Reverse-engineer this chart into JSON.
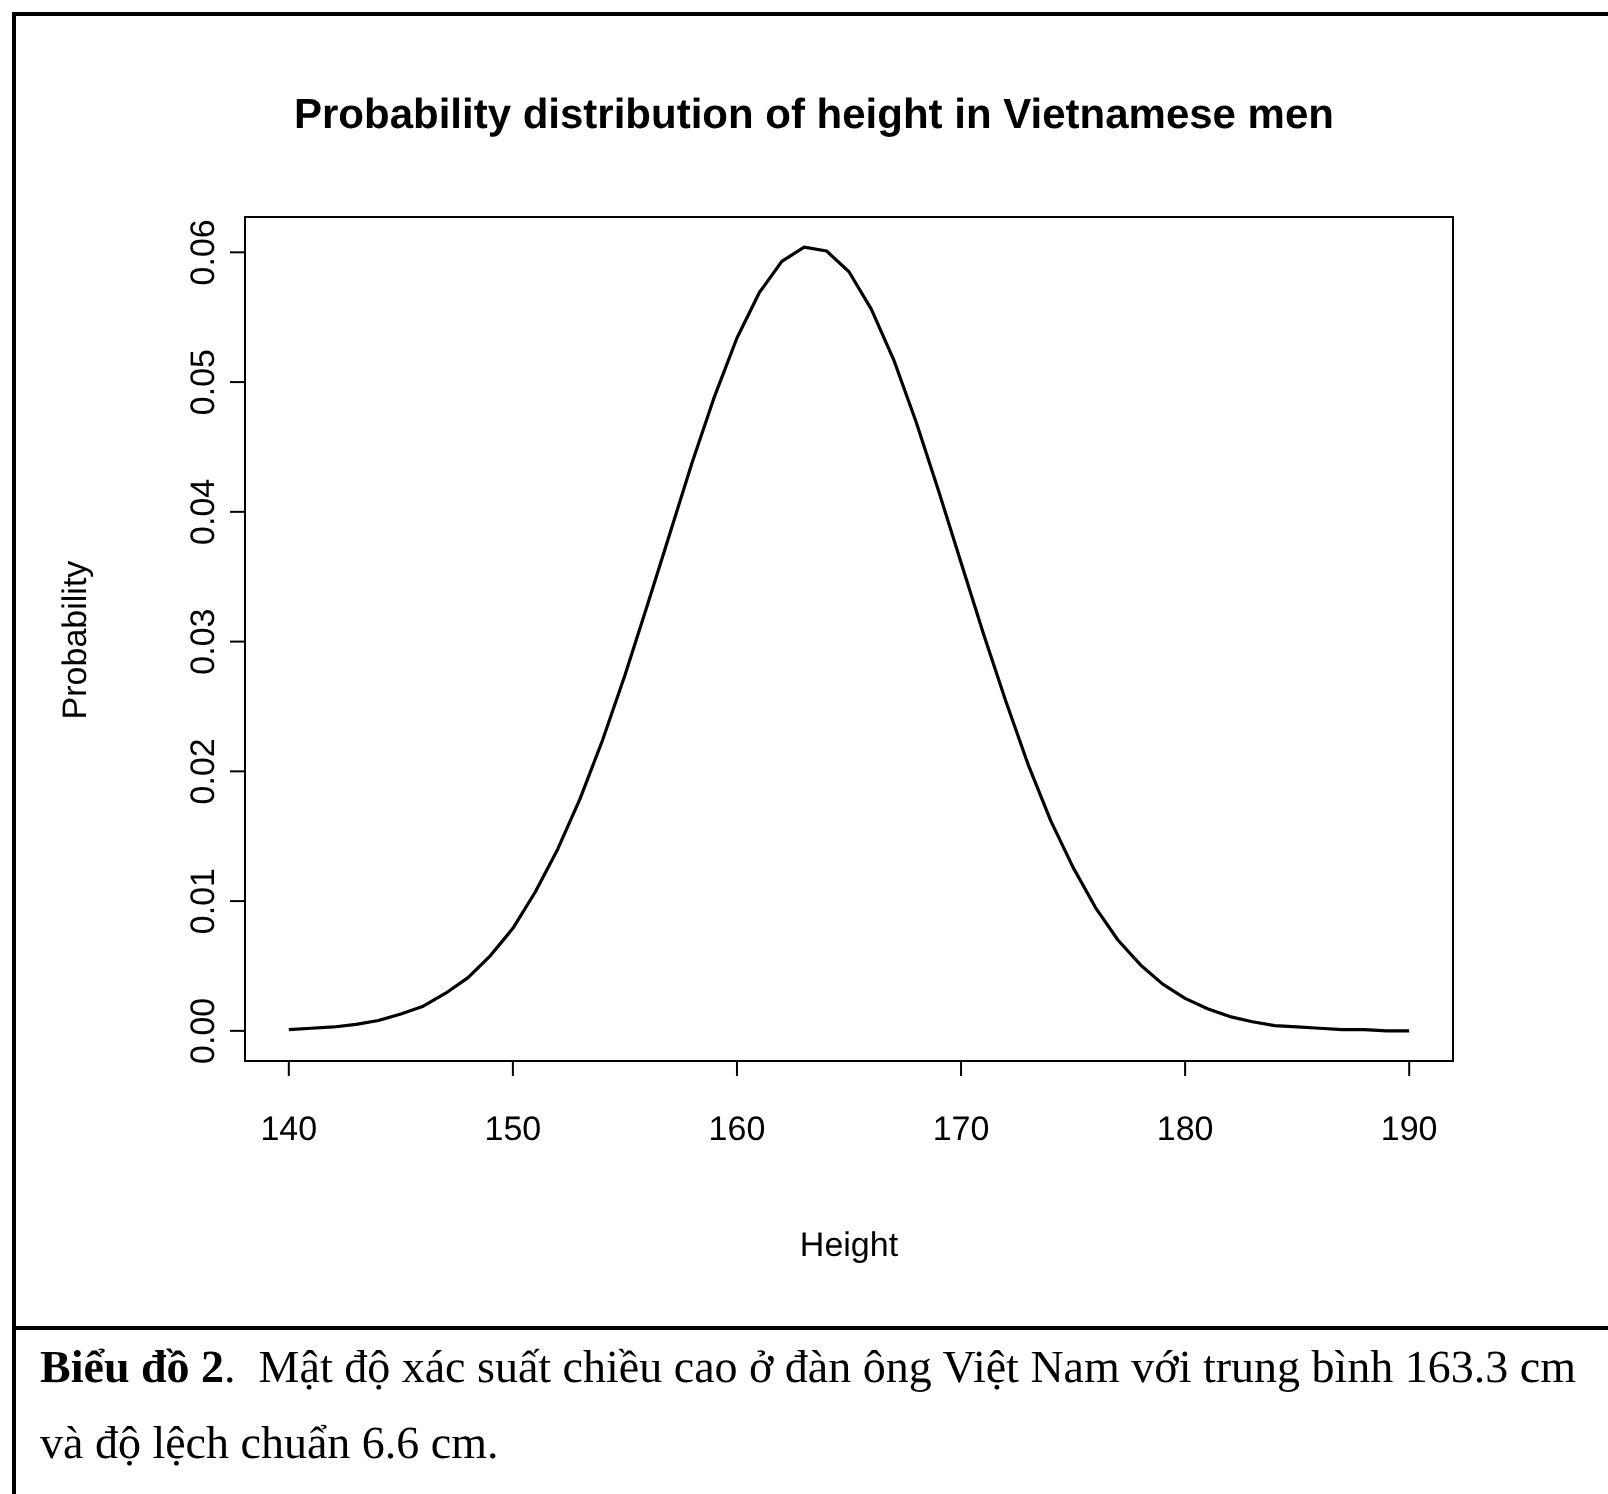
{
  "chart_data": {
    "type": "line",
    "title": "Probability distribution of height in Vietnamese men",
    "xlabel": "Height",
    "ylabel": "Probability",
    "annotations": [
      "Biểu đồ 2.  Mật độ xác suất chiều cao ở đàn ông Việt Nam với trung bình 163.3 cm và độ lệch chuẩn 6.6 cm."
    ],
    "x": [
      140,
      141,
      142,
      143,
      144,
      145,
      146,
      147,
      148,
      149,
      150,
      151,
      152,
      153,
      154,
      155,
      156,
      157,
      158,
      159,
      160,
      161,
      162,
      163,
      164,
      165,
      166,
      167,
      168,
      169,
      170,
      171,
      172,
      173,
      174,
      175,
      176,
      177,
      178,
      179,
      180,
      181,
      182,
      183,
      184,
      185,
      186,
      187,
      188,
      189,
      190
    ],
    "series": [
      {
        "color": "#000000",
        "values": [
          0.0001,
          0.0002,
          0.0003,
          0.0005,
          0.0008,
          0.0013,
          0.0019,
          0.0029,
          0.0041,
          0.0058,
          0.0079,
          0.0107,
          0.014,
          0.0179,
          0.0224,
          0.0274,
          0.0328,
          0.0383,
          0.0438,
          0.0489,
          0.0534,
          0.0569,
          0.0593,
          0.0604,
          0.0601,
          0.0585,
          0.0556,
          0.0517,
          0.0469,
          0.0416,
          0.0361,
          0.0306,
          0.0254,
          0.0205,
          0.0162,
          0.0126,
          0.0095,
          0.007,
          0.0051,
          0.0036,
          0.0025,
          0.0017,
          0.0011,
          0.0007,
          0.0004,
          0.0003,
          0.0002,
          0.0001,
          0.0001,
          0.0,
          0.0
        ]
      }
    ],
    "xlim": [
      138,
      192
    ],
    "ylim": [
      -0.0024,
      0.0628
    ],
    "xticks": [
      140,
      150,
      160,
      170,
      180,
      190
    ],
    "yticks": [
      {
        "value": 0,
        "label": "0.00"
      },
      {
        "value": 0.01,
        "label": "0.01"
      },
      {
        "value": 0.02,
        "label": "0.02"
      },
      {
        "value": 0.03,
        "label": "0.03"
      },
      {
        "value": 0.04,
        "label": "0.04"
      },
      {
        "value": 0.05,
        "label": "0.05"
      },
      {
        "value": 0.06,
        "label": "0.06"
      }
    ],
    "grid": false,
    "legend": false,
    "marker": "none",
    "line_style": "solid"
  }
}
